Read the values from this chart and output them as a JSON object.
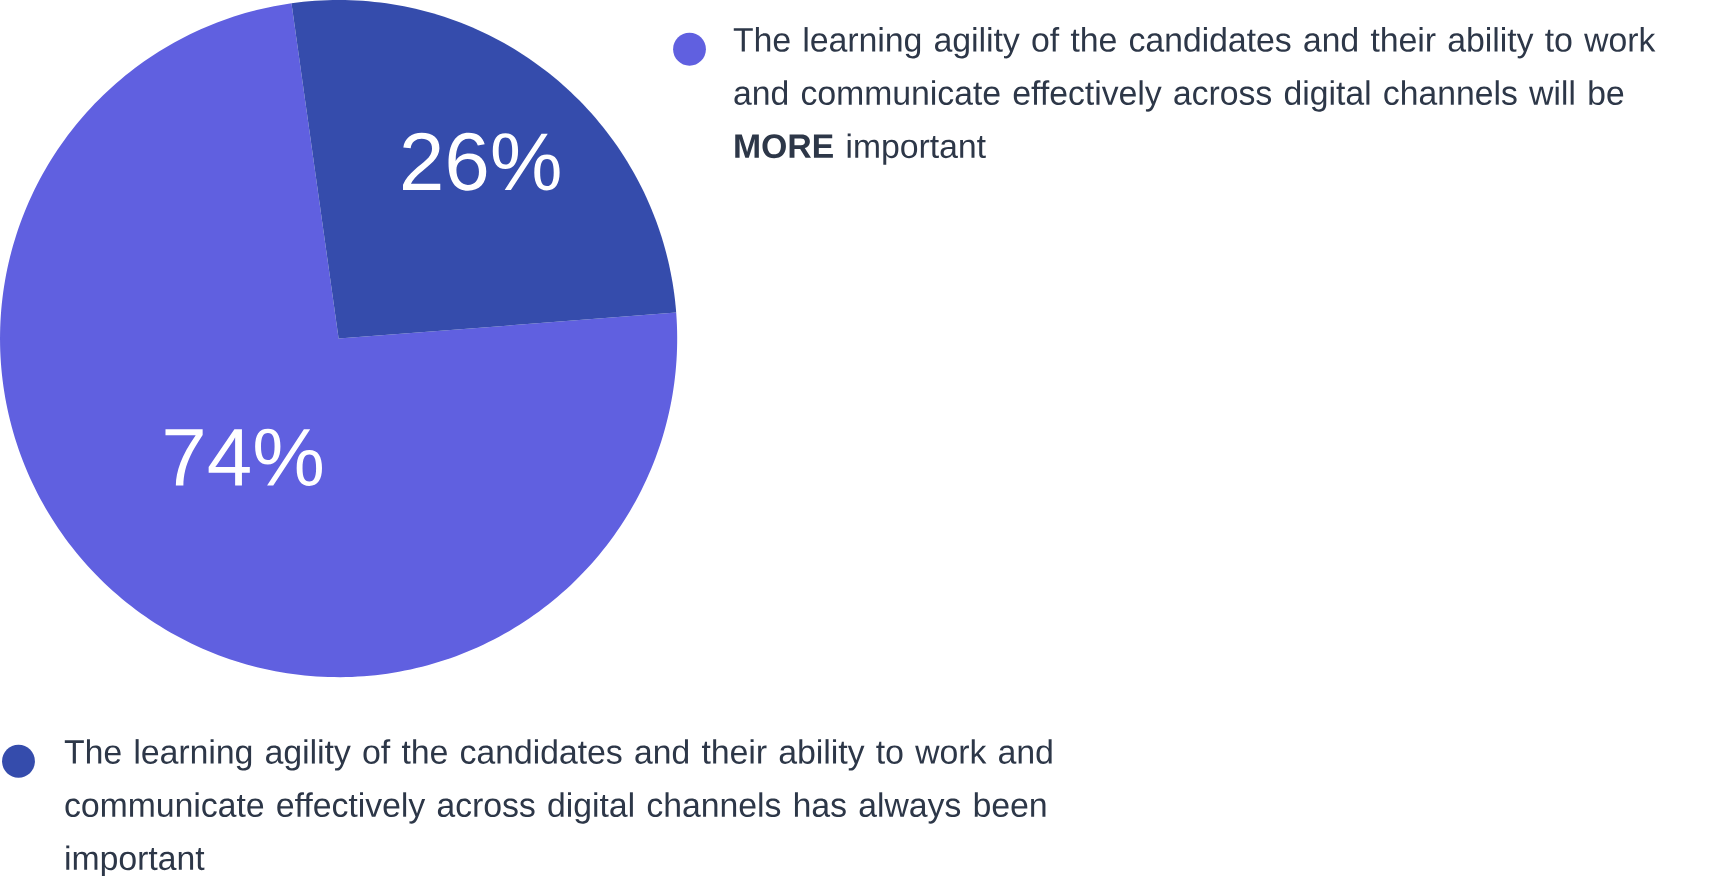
{
  "chart_data": {
    "type": "pie",
    "categories": [
      "The learning agility of the candidates and their ability to work and communicate effectively across digital channels will be **MORE** important",
      "The learning agility of the candidates and their ability to work and communicate effectively across digital channels has always been important"
    ],
    "values": [
      74,
      26
    ],
    "colors": [
      "#6060e0",
      "#354cac"
    ],
    "value_labels": [
      "74%",
      "26%"
    ],
    "legend": "right"
  }
}
